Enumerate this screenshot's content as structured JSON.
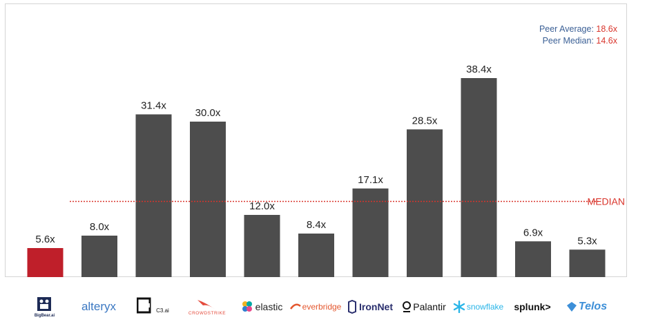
{
  "chart_data": {
    "type": "bar",
    "categories": [
      "BigBear.ai",
      "alteryx",
      "C3.ai",
      "CROWDSTRIKE",
      "elastic",
      "everbridge",
      "IronNet",
      "Palantir",
      "snowflake",
      "splunk>",
      "Telos"
    ],
    "values": [
      5.6,
      8.0,
      31.4,
      30.0,
      12.0,
      8.4,
      17.1,
      28.5,
      38.4,
      6.9,
      5.3
    ],
    "value_labels": [
      "5.6x",
      "8.0x",
      "31.4x",
      "30.0x",
      "12.0x",
      "8.4x",
      "17.1x",
      "28.5x",
      "38.4x",
      "6.9x",
      "5.3x"
    ],
    "highlight_index": 0,
    "ylim": [
      0,
      42
    ],
    "grid": false,
    "median_line": {
      "value": 14.6,
      "label": "MEDIAN"
    },
    "peer_stats": [
      {
        "label": "Peer Average:",
        "value": "18.6x"
      },
      {
        "label": "Peer Median:",
        "value": "14.6x"
      }
    ],
    "colors": {
      "bar": "#4d4d4d",
      "highlight": "#bf1f2a",
      "median": "#d9342b",
      "stat_label": "#3a5f95",
      "stat_value": "#d9342b"
    }
  },
  "logos": [
    {
      "name": "bigbear-logo",
      "text": "BigBear.ai",
      "icon": "bear-icon"
    },
    {
      "name": "alteryx-logo",
      "text": "alteryx"
    },
    {
      "name": "c3ai-logo",
      "text": "C3.ai",
      "icon": "c3-mark-icon"
    },
    {
      "name": "crowdstrike-logo",
      "text": "CROWDSTRIKE",
      "icon": "falcon-icon"
    },
    {
      "name": "elastic-logo",
      "text": "elastic",
      "icon": "elastic-flower-icon"
    },
    {
      "name": "everbridge-logo",
      "text": "everbridge",
      "icon": "everbridge-swoosh-icon"
    },
    {
      "name": "ironnet-logo",
      "text": "IronNet",
      "icon": "ironnet-icon"
    },
    {
      "name": "palantir-logo",
      "text": "Palantir",
      "icon": "palantir-ring-icon"
    },
    {
      "name": "snowflake-logo",
      "text": "snowflake",
      "icon": "snowflake-icon"
    },
    {
      "name": "splunk-logo",
      "text": "splunk>"
    },
    {
      "name": "telos-logo",
      "text": "Telos",
      "icon": "telos-mark-icon"
    }
  ]
}
